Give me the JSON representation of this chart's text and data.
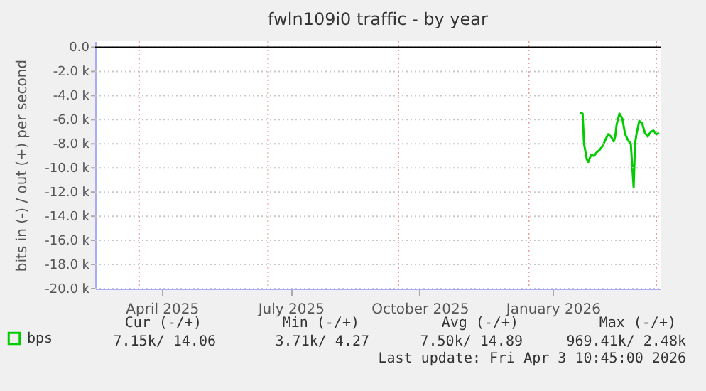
{
  "chart_data": {
    "type": "line",
    "title": "fwln109i0 traffic - by year",
    "ylabel": "bits in (-) / out (+) per second",
    "x": [
      "2026-02-06",
      "2026-02-08",
      "2026-02-09",
      "2026-02-11",
      "2026-02-12",
      "2026-02-14",
      "2026-02-16",
      "2026-02-18",
      "2026-02-20",
      "2026-02-22",
      "2026-02-24",
      "2026-02-26",
      "2026-02-28",
      "2026-03-02",
      "2026-03-03",
      "2026-03-04",
      "2026-03-06",
      "2026-03-08",
      "2026-03-10",
      "2026-03-12",
      "2026-03-14",
      "2026-03-16",
      "2026-03-17",
      "2026-03-18",
      "2026-03-20",
      "2026-03-22",
      "2026-03-24",
      "2026-03-26",
      "2026-03-28",
      "2026-03-30",
      "2026-04-01",
      "2026-04-03"
    ],
    "series": [
      {
        "name": "bps",
        "color": "#00cc00",
        "values": [
          -5400,
          -5500,
          -8000,
          -9300,
          -9500,
          -8900,
          -9000,
          -8700,
          -8500,
          -8200,
          -7700,
          -7200,
          -7400,
          -7800,
          -7400,
          -6400,
          -5500,
          -5900,
          -7200,
          -7700,
          -8000,
          -11600,
          -8000,
          -7200,
          -6100,
          -6300,
          -7100,
          -7400,
          -7000,
          -6900,
          -7200,
          -7100
        ]
      }
    ],
    "xlim": [
      "2025-03-01",
      "2026-04-04"
    ],
    "xticks": [
      {
        "value": "2025-04-01",
        "label": null
      },
      {
        "value": "2025-04-17",
        "label": "April 2025"
      },
      {
        "value": "2025-07-01",
        "label": null
      },
      {
        "value": "2025-07-17",
        "label": "July 2025"
      },
      {
        "value": "2025-10-01",
        "label": null
      },
      {
        "value": "2025-10-16",
        "label": "October 2025"
      },
      {
        "value": "2026-01-01",
        "label": null
      },
      {
        "value": "2026-01-18",
        "label": "January 2026"
      },
      {
        "value": "2026-04-01",
        "label": null
      }
    ],
    "ylim": [
      -20000,
      500
    ],
    "yticks": [
      {
        "value": 0,
        "label": "0.0"
      },
      {
        "value": -2000,
        "label": "-2.0 k"
      },
      {
        "value": -4000,
        "label": "-4.0 k"
      },
      {
        "value": -6000,
        "label": "-6.0 k"
      },
      {
        "value": -8000,
        "label": "-8.0 k"
      },
      {
        "value": -10000,
        "label": "-10.0 k"
      },
      {
        "value": -12000,
        "label": "-12.0 k"
      },
      {
        "value": -14000,
        "label": "-14.0 k"
      },
      {
        "value": -16000,
        "label": "-16.0 k"
      },
      {
        "value": -18000,
        "label": "-18.0 k"
      },
      {
        "value": -20000,
        "label": "-20.0 k"
      }
    ],
    "ref_lines": [
      {
        "axis": "y",
        "value": 0,
        "color": "#000000"
      }
    ],
    "grid": true,
    "legend": "bottom",
    "marker": "none",
    "line_style": "solid",
    "annotations": [
      "Cur (-/+)",
      "Min (-/+)",
      "Avg (-/+)",
      "Max (-/+)",
      "7.15k/ 14.06",
      "3.71k/   4.27",
      "7.50k/ 14.89",
      "969.41k/   2.48k",
      "Last update: Fri Apr  3 10:45:00 2026"
    ]
  }
}
